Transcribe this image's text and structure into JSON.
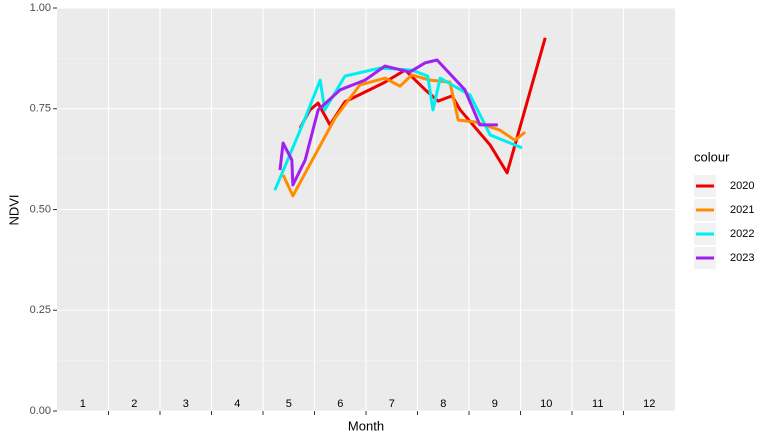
{
  "chart_data": {
    "type": "line",
    "x_label": "Month",
    "y_label": "NDVI",
    "legend_title": "colour",
    "xlim": [
      0,
      12
    ],
    "xticks": [
      1,
      2,
      3,
      4,
      5,
      6,
      7,
      8,
      9,
      10,
      11
    ],
    "ylim": [
      0,
      1
    ],
    "yticks": [
      {
        "value": 0,
        "label": "0.00"
      },
      {
        "value": 0.25,
        "label": "0.25"
      },
      {
        "value": 0.5,
        "label": "0.50"
      },
      {
        "value": 0.75,
        "label": "0.75"
      },
      {
        "value": 1,
        "label": "1.00"
      }
    ],
    "grid": true,
    "minor_grid": true,
    "legend": "right",
    "month_labels": [
      {
        "x": 0.5,
        "label": "1"
      },
      {
        "x": 1.5,
        "label": "2"
      },
      {
        "x": 2.5,
        "label": "3"
      },
      {
        "x": 3.5,
        "label": "4"
      },
      {
        "x": 4.5,
        "label": "5"
      },
      {
        "x": 5.5,
        "label": "6"
      },
      {
        "x": 6.5,
        "label": "7"
      },
      {
        "x": 7.5,
        "label": "8"
      },
      {
        "x": 8.5,
        "label": "9"
      },
      {
        "x": 9.5,
        "label": "10"
      },
      {
        "x": 10.5,
        "label": "11"
      },
      {
        "x": 11.5,
        "label": "12"
      }
    ],
    "series": [
      {
        "name": "2020",
        "color": "#ee0000",
        "x": [
          4.72,
          4.91,
          5.07,
          5.3,
          5.59,
          6.37,
          6.76,
          7.15,
          7.4,
          7.67,
          7.83,
          8.41,
          8.74,
          9.48
        ],
        "values": [
          0.702,
          0.747,
          0.764,
          0.71,
          0.767,
          0.816,
          0.846,
          0.797,
          0.769,
          0.782,
          0.747,
          0.66,
          0.591,
          0.926
        ]
      },
      {
        "name": "2021",
        "color": "#ff8c00",
        "x": [
          4.39,
          4.58,
          5.4,
          5.88,
          6.37,
          6.66,
          6.89,
          7.24,
          7.63,
          7.79,
          8.12,
          8.6,
          8.89,
          9.09
        ],
        "values": [
          0.586,
          0.534,
          0.727,
          0.809,
          0.826,
          0.806,
          0.834,
          0.821,
          0.816,
          0.722,
          0.717,
          0.697,
          0.672,
          0.692
        ]
      },
      {
        "name": "2022",
        "color": "#00eeee",
        "x": [
          4.23,
          4.52,
          4.82,
          5.11,
          5.2,
          5.59,
          6.27,
          6.89,
          7.2,
          7.3,
          7.44,
          8.02,
          8.41,
          9.03
        ],
        "values": [
          0.548,
          0.635,
          0.727,
          0.821,
          0.747,
          0.831,
          0.851,
          0.846,
          0.831,
          0.747,
          0.826,
          0.784,
          0.685,
          0.653
        ]
      },
      {
        "name": "2023",
        "color": "#a020f0",
        "x": [
          4.33,
          4.39,
          4.56,
          4.58,
          4.82,
          5.07,
          5.5,
          5.98,
          6.37,
          6.85,
          7.15,
          7.38,
          7.92,
          8.21,
          8.56
        ],
        "values": [
          0.598,
          0.665,
          0.623,
          0.561,
          0.623,
          0.747,
          0.797,
          0.821,
          0.856,
          0.841,
          0.864,
          0.871,
          0.797,
          0.71,
          0.71
        ]
      }
    ]
  }
}
